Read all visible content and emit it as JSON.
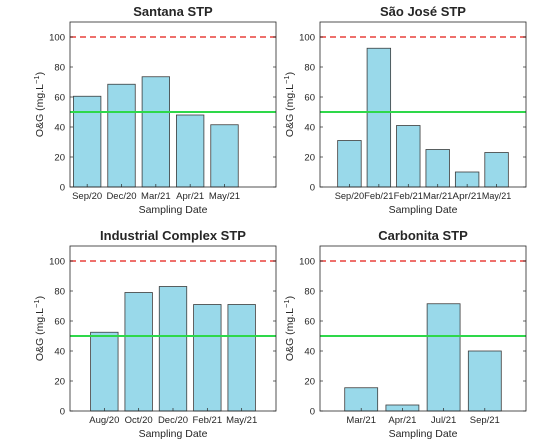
{
  "chart_data": [
    {
      "type": "bar",
      "title": "Santana STP",
      "xlabel": "Sampling Date",
      "ylabel": "O&G (mg.L",
      "ylabel_sup": "−1",
      "ylabel_close": ")",
      "categories": [
        "Sep/20",
        "Dec/20",
        "Mar/21",
        "Apr/21",
        "May/21"
      ],
      "values": [
        60.5,
        68.5,
        73.5,
        48,
        41.5
      ],
      "ylim": [
        0,
        110
      ],
      "yticks": [
        0,
        20,
        40,
        60,
        80,
        100
      ],
      "reference_lines": [
        {
          "value": 100,
          "style": "dashed",
          "color": "#e8403b"
        },
        {
          "value": 50,
          "style": "solid",
          "color": "#2ed84a"
        }
      ],
      "bar_color": "#99d9ea",
      "bar_edge": "#3c3c3c"
    },
    {
      "type": "bar",
      "title": "São José STP",
      "xlabel": "Sampling Date",
      "ylabel": "O&G (mg.L",
      "ylabel_sup": "−1",
      "ylabel_close": ")",
      "categories": [
        "Sep/20",
        "Feb/21",
        "Feb/21",
        "Mar/21",
        "Apr/21",
        "May/21"
      ],
      "values": [
        31,
        92.5,
        41,
        25,
        10,
        23
      ],
      "ylim": [
        0,
        110
      ],
      "yticks": [
        0,
        20,
        40,
        60,
        80,
        100
      ],
      "reference_lines": [
        {
          "value": 100,
          "style": "dashed",
          "color": "#e8403b"
        },
        {
          "value": 50,
          "style": "solid",
          "color": "#2ed84a"
        }
      ],
      "bar_color": "#99d9ea",
      "bar_edge": "#3c3c3c"
    },
    {
      "type": "bar",
      "title": "Industrial Complex STP",
      "xlabel": "Sampling Date",
      "ylabel": "O&G (mg.L",
      "ylabel_sup": "−1",
      "ylabel_close": ")",
      "categories": [
        "Aug/20",
        "Oct/20",
        "Dec/20",
        "Feb/21",
        "May/21"
      ],
      "values": [
        52.5,
        79,
        83,
        71,
        71
      ],
      "ylim": [
        0,
        110
      ],
      "yticks": [
        0,
        20,
        40,
        60,
        80,
        100
      ],
      "reference_lines": [
        {
          "value": 100,
          "style": "dashed",
          "color": "#e8403b"
        },
        {
          "value": 50,
          "style": "solid",
          "color": "#2ed84a"
        }
      ],
      "bar_color": "#99d9ea",
      "bar_edge": "#3c3c3c"
    },
    {
      "type": "bar",
      "title": "Carbonita STP",
      "xlabel": "Sampling Date",
      "ylabel": "O&G (mg.L",
      "ylabel_sup": "−1",
      "ylabel_close": ")",
      "categories": [
        "Mar/21",
        "Apr/21",
        "Jul/21",
        "Sep/21"
      ],
      "values": [
        15.5,
        4,
        71.5,
        40
      ],
      "ylim": [
        0,
        110
      ],
      "yticks": [
        0,
        20,
        40,
        60,
        80,
        100
      ],
      "reference_lines": [
        {
          "value": 100,
          "style": "dashed",
          "color": "#e8403b"
        },
        {
          "value": 50,
          "style": "solid",
          "color": "#2ed84a"
        }
      ],
      "bar_color": "#99d9ea",
      "bar_edge": "#3c3c3c"
    }
  ]
}
